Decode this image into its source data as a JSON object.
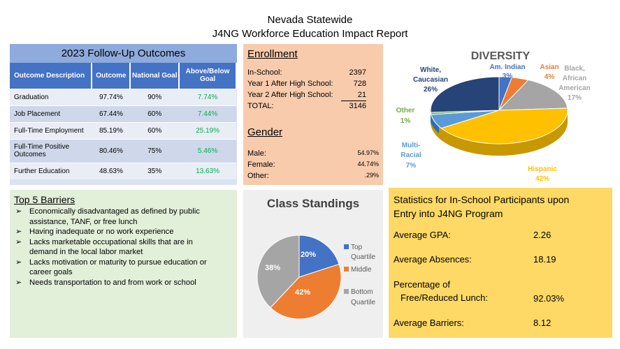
{
  "header": {
    "line1": "Nevada Statewide",
    "line2": "J4NG Workforce Education Impact Report"
  },
  "outcomes": {
    "title": "2023 Follow-Up Outcomes",
    "columns": [
      "Outcome Description",
      "Outcome",
      "National Goal",
      "Above/Below Goal"
    ],
    "rows": [
      {
        "desc": "Graduation",
        "outcome": "97.74%",
        "goal": "90%",
        "diff": "7.74%"
      },
      {
        "desc": "Job Placement",
        "outcome": "67.44%",
        "goal": "60%",
        "diff": "7.44%"
      },
      {
        "desc": "Full-Time Employment",
        "outcome": "85.19%",
        "goal": "60%",
        "diff": "25.19%"
      },
      {
        "desc": "Full-Time Positive Outcomes",
        "outcome": "80.46%",
        "goal": "75%",
        "diff": "5.46%"
      },
      {
        "desc": "Further Education",
        "outcome": "48.63%",
        "goal": "35%",
        "diff": "13.63%"
      }
    ],
    "diff_color": "#00b050"
  },
  "enrollment": {
    "title": "Enrollment",
    "rows": [
      {
        "label": "In-School:",
        "value": "2397"
      },
      {
        "label": "Year 1 After High School:",
        "value": "728"
      },
      {
        "label": "Year 2 After High School:",
        "value": "21"
      },
      {
        "label": "TOTAL:",
        "value": "3146"
      }
    ]
  },
  "gender": {
    "title": "Gender",
    "rows": [
      {
        "label": "Male:",
        "value": "54.97%"
      },
      {
        "label": "Female:",
        "value": "44.74%"
      },
      {
        "label": "Other:",
        "value": ".29%"
      }
    ]
  },
  "diversity": {
    "title": "DIVERSITY",
    "labels": {
      "am_indian": [
        "Am. Indian",
        "3%"
      ],
      "asian": [
        "Asian",
        "4%"
      ],
      "black": [
        "Black,",
        "African",
        "American",
        "17%"
      ],
      "white": [
        "White,",
        "Caucasian",
        "26%"
      ],
      "other": [
        "Other",
        "1%"
      ],
      "multi": [
        "Multi-",
        "Racial",
        "7%"
      ],
      "hispanic": [
        "Hispanic",
        "42%"
      ]
    }
  },
  "chart_data": [
    {
      "type": "pie",
      "title": "DIVERSITY",
      "categories": [
        "Am. Indian",
        "Asian",
        "Black, African American",
        "Hispanic",
        "Multi-Racial",
        "Other",
        "White, Caucasian"
      ],
      "values": [
        3,
        4,
        17,
        42,
        7,
        1,
        26
      ],
      "colors": [
        "#4472c4",
        "#ed7d31",
        "#a5a5a5",
        "#ffc000",
        "#5b9bd5",
        "#70ad47",
        "#264478"
      ]
    },
    {
      "type": "pie",
      "title": "Class Standings",
      "categories": [
        "Top Quartile",
        "Middle",
        "Bottom Quartile"
      ],
      "values": [
        20,
        42,
        38
      ],
      "colors": [
        "#4472c4",
        "#ed7d31",
        "#a5a5a5"
      ]
    }
  ],
  "barriers": {
    "title": "Top 5 Barriers",
    "bullet": "➢",
    "items": [
      [
        "Economically disadvantaged as defined by public",
        "assistance, TANF, or free lunch"
      ],
      [
        "Having inadequate or no work experience"
      ],
      [
        "Lacks marketable occupational skills that are in",
        "demand in the local labor market"
      ],
      [
        "Lacks motivation or maturity to pursue education or",
        "career goals"
      ],
      [
        "Needs transportation to and from work or school"
      ]
    ]
  },
  "class_standings": {
    "title": "Class Standings",
    "slices": [
      "20%",
      "42%",
      "38%"
    ],
    "legend": [
      [
        "Top",
        "Quartile"
      ],
      [
        "Middle"
      ],
      [
        "Bottom",
        "Quartile"
      ]
    ]
  },
  "stats": {
    "title_line1": "Statistics for In-School Participants upon",
    "title_line2": "Entry into J4NG Program",
    "gpa_label": "Average GPA:",
    "gpa_value": "2.26",
    "abs_label": "Average Absences:",
    "abs_value": "18.19",
    "lunch_label1": "Percentage of",
    "lunch_label2": "Free/Reduced Lunch:",
    "lunch_value": "92.03%",
    "barriers_label": "Average Barriers:",
    "barriers_value": "8.12"
  }
}
